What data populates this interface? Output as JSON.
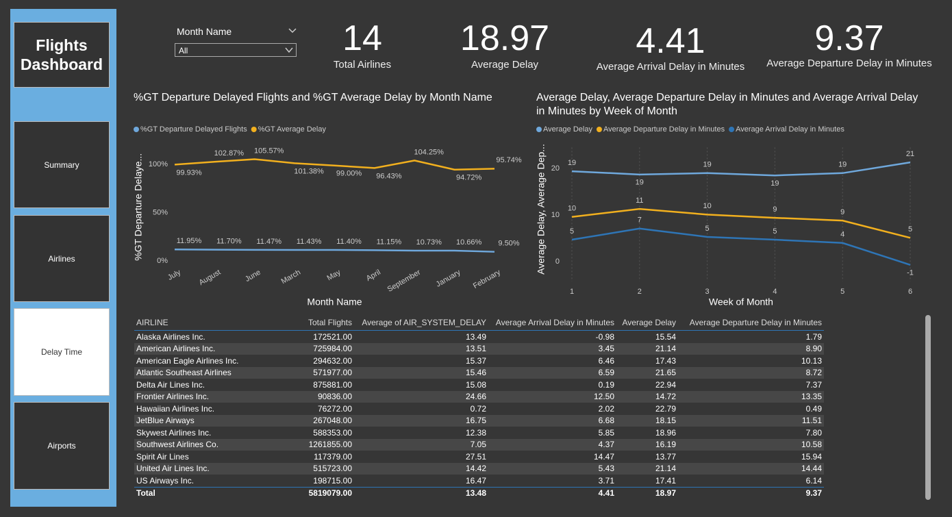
{
  "sidebar": {
    "title": "Flights Dashboard",
    "buttons": [
      "Summary",
      "Airlines",
      "Delay Time",
      "Airports"
    ]
  },
  "filter": {
    "label": "Month Name",
    "value": "All"
  },
  "kpis": [
    {
      "value": "14",
      "label": "Total Airlines"
    },
    {
      "value": "18.97",
      "label": "Average Delay"
    },
    {
      "value": "4.41",
      "label": "Average Arrival Delay in Minutes"
    },
    {
      "value": "9.37",
      "label": "Average Departure Delay in Minutes"
    }
  ],
  "chart_data": [
    {
      "type": "line",
      "title": "%GT Departure Delayed Flights and %GT Average Delay by Month Name",
      "x_label": "Month Name",
      "y_label": "%GT Departure Delaye...",
      "categories": [
        "July",
        "August",
        "June",
        "March",
        "May",
        "April",
        "September",
        "January",
        "February"
      ],
      "series": [
        {
          "name": "%GT Departure Delayed Flights",
          "color": "#6fa8dc",
          "values": [
            11.95,
            11.7,
            11.47,
            11.43,
            11.4,
            11.15,
            10.73,
            10.66,
            9.5
          ],
          "value_labels": [
            "11.95%",
            "11.70%",
            "11.47%",
            "11.43%",
            "11.40%",
            "11.15%",
            "10.73%",
            "10.66%",
            "9.50%"
          ]
        },
        {
          "name": "%GT Average Delay",
          "color": "#f2b01e",
          "values": [
            99.93,
            102.87,
            105.57,
            101.38,
            99.0,
            96.43,
            104.25,
            94.72,
            95.74
          ],
          "value_labels": [
            "99.93%",
            "102.87%",
            "105.57%",
            "101.38%",
            "99.00%",
            "96.43%",
            "104.25%",
            "94.72%",
            "95.74%"
          ]
        }
      ],
      "ylim": [
        -6,
        118
      ],
      "yticks": [
        {
          "value": 0,
          "label": "0%"
        },
        {
          "value": 50,
          "label": "50%"
        },
        {
          "value": 100,
          "label": "100%"
        }
      ]
    },
    {
      "type": "line",
      "title": "Average Delay, Average Departure Delay in Minutes and Average Arrival Delay in Minutes by Week of Month",
      "x_label": "Week of Month",
      "y_label": "Average Delay, Average Dep...",
      "x": [
        1,
        2,
        3,
        4,
        5,
        6
      ],
      "xlim": [
        1,
        6
      ],
      "xticks": [
        1,
        2,
        3,
        4,
        5,
        6
      ],
      "series": [
        {
          "name": "Average Delay",
          "color": "#6fa8dc",
          "values": [
            19.4,
            18.7,
            19.0,
            18.5,
            19.0,
            21.3
          ],
          "value_labels": [
            "19",
            "19",
            "19",
            "19",
            "19",
            "21"
          ]
        },
        {
          "name": "Average Departure Delay in Minutes",
          "color": "#f2b01e",
          "values": [
            9.6,
            11.3,
            10.1,
            9.4,
            8.8,
            5.1
          ],
          "value_labels": [
            "10",
            "11",
            "10",
            "9",
            "9",
            "5"
          ]
        },
        {
          "name": "Average Arrival Delay in Minutes",
          "color": "#2e75b6",
          "values": [
            4.7,
            7.1,
            5.3,
            4.7,
            4.0,
            -0.7
          ],
          "value_labels": [
            "5",
            "7",
            "5",
            "5",
            "4",
            "-1"
          ]
        }
      ],
      "ylim": [
        -2,
        24.5
      ],
      "yticks": [
        0,
        10,
        20
      ],
      "grid": true
    }
  ],
  "table": {
    "columns": [
      "AIRLINE",
      "Total Flights",
      "Average of AIR_SYSTEM_DELAY",
      "Average Arrival Delay in Minutes",
      "Average Delay",
      "Average Departure Delay in Minutes"
    ],
    "rows": [
      [
        "Alaska Airlines Inc.",
        "172521.00",
        "13.49",
        "-0.98",
        "15.54",
        "1.79"
      ],
      [
        "American Airlines Inc.",
        "725984.00",
        "13.51",
        "3.45",
        "21.14",
        "8.90"
      ],
      [
        "American Eagle Airlines Inc.",
        "294632.00",
        "15.37",
        "6.46",
        "17.43",
        "10.13"
      ],
      [
        "Atlantic Southeast Airlines",
        "571977.00",
        "15.46",
        "6.59",
        "21.65",
        "8.72"
      ],
      [
        "Delta Air Lines Inc.",
        "875881.00",
        "15.08",
        "0.19",
        "22.94",
        "7.37"
      ],
      [
        "Frontier Airlines Inc.",
        "90836.00",
        "24.66",
        "12.50",
        "14.72",
        "13.35"
      ],
      [
        "Hawaiian Airlines Inc.",
        "76272.00",
        "0.72",
        "2.02",
        "22.79",
        "0.49"
      ],
      [
        "JetBlue Airways",
        "267048.00",
        "16.75",
        "6.68",
        "18.15",
        "11.51"
      ],
      [
        "Skywest Airlines Inc.",
        "588353.00",
        "12.38",
        "5.85",
        "18.96",
        "7.80"
      ],
      [
        "Southwest Airlines Co.",
        "1261855.00",
        "7.05",
        "4.37",
        "16.19",
        "10.58"
      ],
      [
        "Spirit Air Lines",
        "117379.00",
        "27.51",
        "14.47",
        "13.77",
        "15.94"
      ],
      [
        "United Air Lines Inc.",
        "515723.00",
        "14.42",
        "5.43",
        "21.14",
        "14.44"
      ],
      [
        "US Airways Inc.",
        "198715.00",
        "16.47",
        "3.71",
        "17.41",
        "6.14"
      ]
    ],
    "total": [
      "Total",
      "5819079.00",
      "13.48",
      "4.41",
      "18.97",
      "9.37"
    ]
  }
}
